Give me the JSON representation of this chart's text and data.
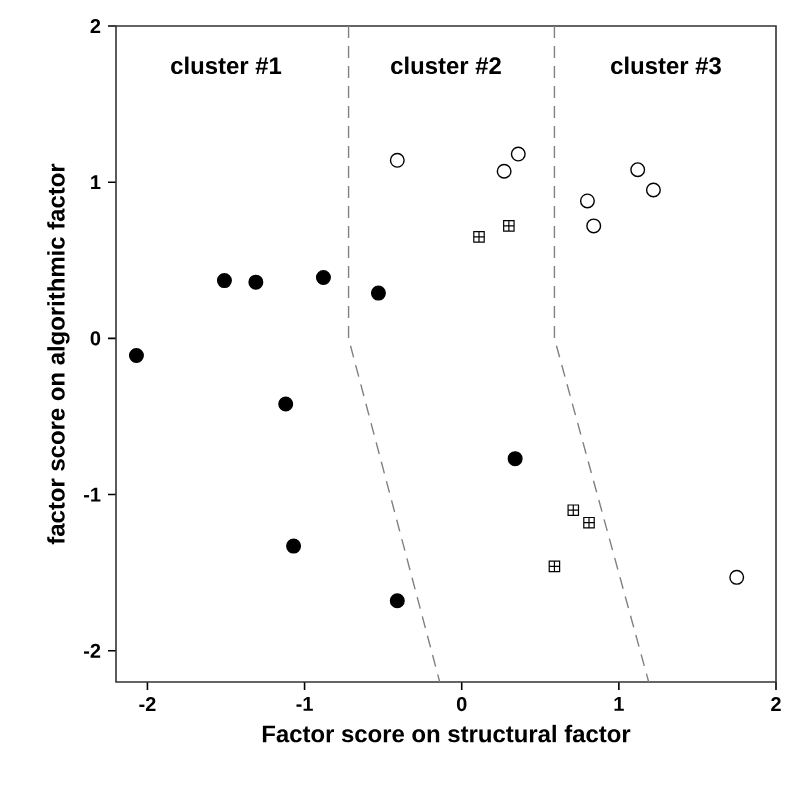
{
  "chart_data": {
    "type": "scatter",
    "xlabel": "Factor score on structural factor",
    "ylabel": "factor score on algorithmic factor",
    "xlim": [
      -2.2,
      2
    ],
    "ylim": [
      -2.2,
      2
    ],
    "xticks": [
      -2,
      -1,
      0,
      1,
      2
    ],
    "yticks": [
      -2,
      -1,
      0,
      1,
      2
    ],
    "grid": false,
    "series": [
      {
        "marker": "circle",
        "color": "#000000",
        "x": [
          -2.07,
          -1.51,
          -1.31,
          -0.88,
          -0.53,
          -1.12,
          -1.07,
          -0.41,
          0.34
        ],
        "values": [
          -0.11,
          0.37,
          0.36,
          0.39,
          0.29,
          -0.42,
          -1.33,
          -1.68,
          -0.77
        ]
      },
      {
        "marker": "circle",
        "color": "#ffffff",
        "x": [
          -0.41,
          0.27,
          0.36,
          0.8,
          0.84,
          1.12,
          1.22,
          1.75
        ],
        "values": [
          1.14,
          1.07,
          1.18,
          0.88,
          0.72,
          1.08,
          0.95,
          -1.53
        ]
      },
      {
        "marker": "square",
        "color": "#ffffff",
        "x": [
          0.11,
          0.3,
          0.71,
          0.81,
          0.59
        ],
        "values": [
          0.65,
          0.72,
          -1.1,
          -1.18,
          -1.46
        ]
      },
      {
        "type": "line",
        "marker": "none",
        "line_style": "dashed",
        "color": "#808080",
        "x": [
          -0.72,
          -0.72,
          -0.14
        ],
        "values": [
          2,
          0,
          -2.2
        ]
      },
      {
        "type": "line",
        "marker": "none",
        "line_style": "dashed",
        "color": "#808080",
        "x": [
          0.59,
          0.59,
          1.19
        ],
        "values": [
          2,
          0,
          -2.2
        ]
      }
    ],
    "annotations": [
      "cluster #1",
      "cluster #2",
      "cluster #3"
    ]
  }
}
